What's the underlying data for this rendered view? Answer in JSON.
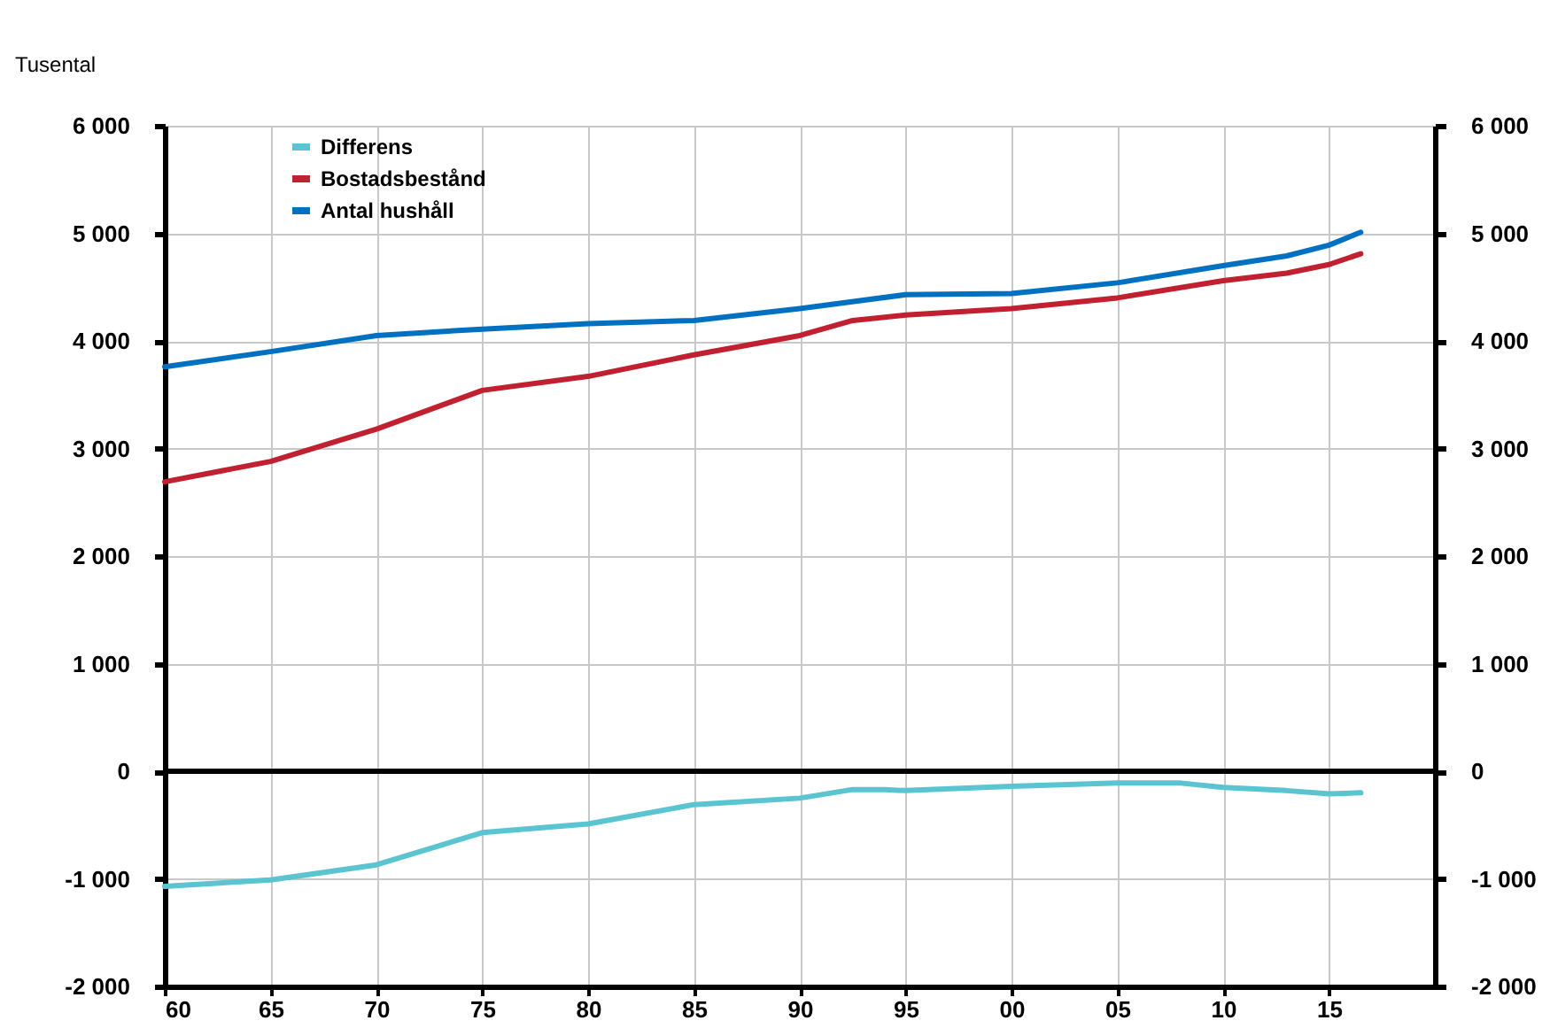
{
  "chart_data": {
    "type": "line",
    "ylabel": "Tusental",
    "xlim": [
      1960,
      2020
    ],
    "xticks": [
      {
        "value": 1960,
        "label": "60"
      },
      {
        "value": 1965,
        "label": "65"
      },
      {
        "value": 1970,
        "label": "70"
      },
      {
        "value": 1975,
        "label": "75"
      },
      {
        "value": 1980,
        "label": "80"
      },
      {
        "value": 1985,
        "label": "85"
      },
      {
        "value": 1990,
        "label": "90"
      },
      {
        "value": 1995,
        "label": "95"
      },
      {
        "value": 2000,
        "label": "00"
      },
      {
        "value": 2005,
        "label": "05"
      },
      {
        "value": 2010,
        "label": "10"
      },
      {
        "value": 2015,
        "label": "15"
      }
    ],
    "ylim": [
      -2000,
      6000
    ],
    "yticks": [
      {
        "value": -2000,
        "label": "-2 000"
      },
      {
        "value": -1000,
        "label": "-1 000"
      },
      0,
      {
        "value": 1000,
        "label": "1 000"
      },
      {
        "value": 2000,
        "label": "2 000"
      },
      {
        "value": 3000,
        "label": "3 000"
      },
      {
        "value": 4000,
        "label": "4 000"
      },
      {
        "value": 5000,
        "label": "5 000"
      },
      {
        "value": 6000,
        "label": "6 000"
      }
    ],
    "y2lim": [
      -2000,
      6000
    ],
    "y2ticks": [
      {
        "value": -2000,
        "label": "-2 000"
      },
      {
        "value": -1000,
        "label": "-1 000"
      },
      0,
      {
        "value": 1000,
        "label": "1 000"
      },
      {
        "value": 2000,
        "label": "2 000"
      },
      {
        "value": 3000,
        "label": "3 000"
      },
      {
        "value": 4000,
        "label": "4 000"
      },
      {
        "value": 5000,
        "label": "5 000"
      },
      {
        "value": 6000,
        "label": "6 000"
      }
    ],
    "series": [
      {
        "name": "Differens",
        "color": "#5bc4d1",
        "x": [
          1960,
          1965,
          1970,
          1975,
          1980,
          1985,
          1990,
          1992.5,
          1994,
          1995,
          2000,
          2005,
          2008,
          2010,
          2013,
          2015,
          2016.5
        ],
        "values": [
          -1070,
          -1010,
          -870,
          -570,
          -490,
          -310,
          -250,
          -170,
          -170,
          -180,
          -140,
          -110,
          -110,
          -150,
          -180,
          -210,
          -200
        ]
      },
      {
        "name": "Bostadsbestånd",
        "color": "#c0202f",
        "x": [
          1960,
          1965,
          1970,
          1975,
          1980,
          1985,
          1990,
          1992.5,
          1995,
          2000,
          2005,
          2010,
          2013,
          2015,
          2016.5
        ],
        "values": [
          2690,
          2880,
          3180,
          3540,
          3670,
          3870,
          4050,
          4190,
          4240,
          4300,
          4400,
          4560,
          4630,
          4710,
          4810
        ]
      },
      {
        "name": "Antal hushåll",
        "color": "#0070c0",
        "x": [
          1960,
          1965,
          1970,
          1975,
          1980,
          1985,
          1990,
          1995,
          2000,
          2005,
          2010,
          2013,
          2015,
          2016.5
        ],
        "values": [
          3760,
          3900,
          4050,
          4110,
          4160,
          4190,
          4300,
          4430,
          4440,
          4540,
          4700,
          4790,
          4890,
          5010
        ]
      }
    ],
    "ref_lines": [
      {
        "axis": "y2",
        "value": 0
      }
    ],
    "grid": true,
    "legend": "top left",
    "line_style": "solid",
    "marker": "none"
  }
}
